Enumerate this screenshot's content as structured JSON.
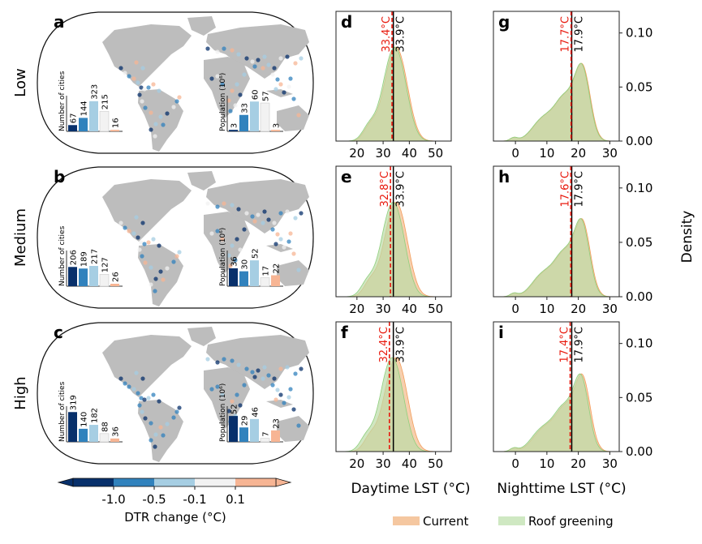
{
  "colors": {
    "dtr_bins": [
      "#08306b",
      "#3182bd",
      "#a6cee3",
      "#f2f2f2",
      "#f7b594"
    ],
    "current_fill": "#f5c7a0",
    "current_stroke": "#f39c5a",
    "greening_fill": "#bcdca6",
    "greening_stroke": "#8fcf7d",
    "overlap_fill": "#c9cf94",
    "greening_mean_line": "#e8180c",
    "current_mean_line": "#000000",
    "land": "#bdbdbd"
  },
  "row_labels": [
    "Low",
    "Medium",
    "High"
  ],
  "map_panels": [
    {
      "letter": "a",
      "cities_label": "Number of cities",
      "population_label": "Population (10⁶)",
      "cities": [
        67,
        144,
        323,
        215,
        16
      ],
      "population": [
        3,
        33,
        60,
        57,
        3
      ]
    },
    {
      "letter": "b",
      "cities_label": "Number of cities",
      "population_label": "Population (10⁶)",
      "cities": [
        206,
        189,
        217,
        127,
        26
      ],
      "population": [
        36,
        30,
        52,
        17,
        22
      ]
    },
    {
      "letter": "c",
      "cities_label": "Number of cities",
      "population_label": "Population (10⁶)",
      "cities": [
        319,
        140,
        182,
        88,
        36
      ],
      "population": [
        52,
        29,
        46,
        7,
        23
      ]
    }
  ],
  "colorbar": {
    "title": "DTR change (°C)",
    "ticks": [
      "-1.0",
      "-0.5",
      "-0.1",
      "0.1"
    ]
  },
  "chart_data": [
    {
      "type": "area",
      "panel": "d",
      "scenario": "Low",
      "variable": "Daytime LST",
      "xlim": [
        12,
        56
      ],
      "ylim": [
        0,
        0.12
      ],
      "xticks": [
        20,
        30,
        40,
        50
      ],
      "series": [
        {
          "name": "Current",
          "mean": 33.9,
          "mean_label": "33.9°C",
          "peak_x": 34,
          "peak_y": 0.094
        },
        {
          "name": "Roof greening",
          "mean": 33.4,
          "mean_label": "33.4°C",
          "peak_x": 33,
          "peak_y": 0.096
        }
      ]
    },
    {
      "type": "area",
      "panel": "e",
      "scenario": "Medium",
      "variable": "Daytime LST",
      "xlim": [
        12,
        56
      ],
      "ylim": [
        0,
        0.12
      ],
      "xticks": [
        20,
        30,
        40,
        50
      ],
      "series": [
        {
          "name": "Current",
          "mean": 33.9,
          "mean_label": "33.9°C",
          "peak_x": 34,
          "peak_y": 0.094
        },
        {
          "name": "Roof greening",
          "mean": 32.8,
          "mean_label": "32.8°C",
          "peak_x": 32.5,
          "peak_y": 0.097
        }
      ]
    },
    {
      "type": "area",
      "panel": "f",
      "scenario": "High",
      "variable": "Daytime LST",
      "xlim": [
        12,
        56
      ],
      "ylim": [
        0,
        0.12
      ],
      "xticks": [
        20,
        30,
        40,
        50
      ],
      "xlabel": "Daytime LST (°C)",
      "series": [
        {
          "name": "Current",
          "mean": 33.9,
          "mean_label": "33.9°C",
          "peak_x": 34,
          "peak_y": 0.094
        },
        {
          "name": "Roof greening",
          "mean": 32.4,
          "mean_label": "32.4°C",
          "peak_x": 32,
          "peak_y": 0.099
        }
      ]
    },
    {
      "type": "area",
      "panel": "g",
      "scenario": "Low",
      "variable": "Nighttime LST",
      "xlim": [
        -7,
        33
      ],
      "ylim": [
        0,
        0.12
      ],
      "xticks": [
        0,
        10,
        20,
        30
      ],
      "yticks": [
        "0.00",
        "0.05",
        "0.10"
      ],
      "series": [
        {
          "name": "Current",
          "mean": 17.9,
          "mean_label": "17.9°C",
          "peak_x": 21.5,
          "peak_y": 0.096
        },
        {
          "name": "Roof greening",
          "mean": 17.7,
          "mean_label": "17.7°C",
          "peak_x": 21.3,
          "peak_y": 0.096
        }
      ]
    },
    {
      "type": "area",
      "panel": "h",
      "scenario": "Medium",
      "variable": "Nighttime LST",
      "xlim": [
        -7,
        33
      ],
      "ylim": [
        0,
        0.12
      ],
      "xticks": [
        0,
        10,
        20,
        30
      ],
      "yticks": [
        "0.00",
        "0.05",
        "0.10"
      ],
      "ylabel": "Density",
      "series": [
        {
          "name": "Current",
          "mean": 17.9,
          "mean_label": "17.9°C",
          "peak_x": 21.5,
          "peak_y": 0.096
        },
        {
          "name": "Roof greening",
          "mean": 17.6,
          "mean_label": "17.6°C",
          "peak_x": 21.2,
          "peak_y": 0.096
        }
      ]
    },
    {
      "type": "area",
      "panel": "i",
      "scenario": "High",
      "variable": "Nighttime LST",
      "xlim": [
        -7,
        33
      ],
      "ylim": [
        0,
        0.12
      ],
      "xticks": [
        0,
        10,
        20,
        30
      ],
      "yticks": [
        "0.00",
        "0.05",
        "0.10"
      ],
      "xlabel": "Nighttime LST (°C)",
      "series": [
        {
          "name": "Current",
          "mean": 17.9,
          "mean_label": "17.9°C",
          "peak_x": 21.5,
          "peak_y": 0.096
        },
        {
          "name": "Roof greening",
          "mean": 17.4,
          "mean_label": "17.4°C",
          "peak_x": 21.0,
          "peak_y": 0.096
        }
      ]
    }
  ],
  "legend": {
    "placement": "bottom-right",
    "items": [
      {
        "label": "Current"
      },
      {
        "label": "Roof greening"
      }
    ]
  }
}
